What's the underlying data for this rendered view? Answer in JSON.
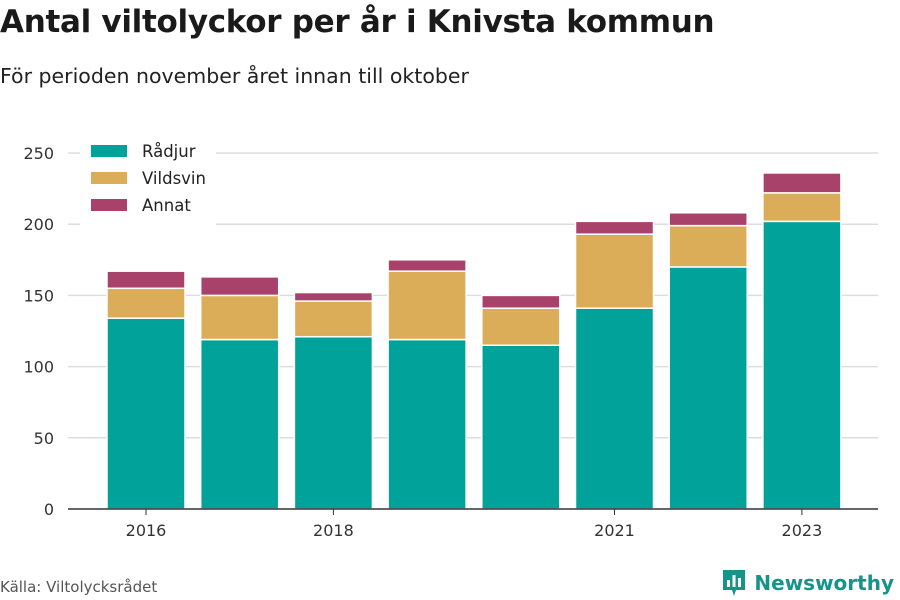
{
  "title": "Antal viltolyckor per år i Knivsta kommun",
  "subtitle": "För perioden november året innan till oktober",
  "source": "Källa: Viltolycksrådet",
  "brand": "Newsworthy",
  "colors": {
    "radjur": "#00a29a",
    "vildsvin": "#dbad59",
    "annat": "#a8426a",
    "grid": "#dddddd",
    "axis": "#333333",
    "brand": "#16948a"
  },
  "chart_data": {
    "type": "bar",
    "stacked": true,
    "categories": [
      "2016",
      "2017",
      "2018",
      "2019",
      "2020",
      "2021",
      "2022",
      "2023"
    ],
    "x_tick_labels": [
      "2016",
      "",
      "2018",
      "",
      "",
      "2021",
      "",
      "2023"
    ],
    "series": [
      {
        "name": "Rådjur",
        "values": [
          134,
          119,
          121,
          119,
          115,
          141,
          170,
          202
        ]
      },
      {
        "name": "Vildsvin",
        "values": [
          21,
          31,
          25,
          48,
          26,
          52,
          29,
          20
        ]
      },
      {
        "name": "Annat",
        "values": [
          12,
          13,
          6,
          8,
          9,
          9,
          9,
          14
        ]
      }
    ],
    "ylim": [
      0,
      250
    ],
    "yticks": [
      0,
      50,
      100,
      150,
      200,
      250
    ],
    "grid": true,
    "legend_position": "top-left"
  }
}
